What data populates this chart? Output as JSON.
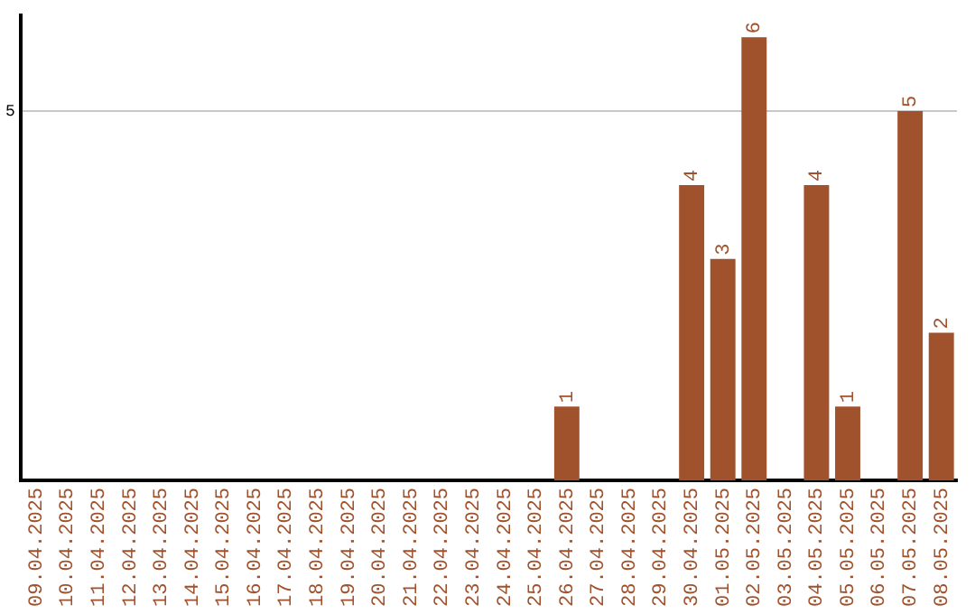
{
  "chart_data": {
    "type": "bar",
    "categories": [
      "09.04.2025",
      "10.04.2025",
      "11.04.2025",
      "12.04.2025",
      "13.04.2025",
      "14.04.2025",
      "15.04.2025",
      "16.04.2025",
      "17.04.2025",
      "18.04.2025",
      "19.04.2025",
      "20.04.2025",
      "21.04.2025",
      "22.04.2025",
      "23.04.2025",
      "24.04.2025",
      "25.04.2025",
      "26.04.2025",
      "27.04.2025",
      "28.04.2025",
      "29.04.2025",
      "30.04.2025",
      "01.05.2025",
      "02.05.2025",
      "03.05.2025",
      "04.05.2025",
      "05.05.2025",
      "06.05.2025",
      "07.05.2025",
      "08.05.2025"
    ],
    "values": [
      null,
      null,
      null,
      null,
      null,
      null,
      null,
      null,
      null,
      null,
      null,
      null,
      null,
      null,
      null,
      null,
      null,
      1,
      null,
      null,
      null,
      4,
      3,
      6,
      null,
      4,
      1,
      null,
      5,
      2
    ],
    "color": "#a0522d",
    "ylim": [
      0,
      6.3
    ],
    "yticks": [
      5
    ],
    "grid": "y",
    "data_labels": true,
    "legend": false
  }
}
